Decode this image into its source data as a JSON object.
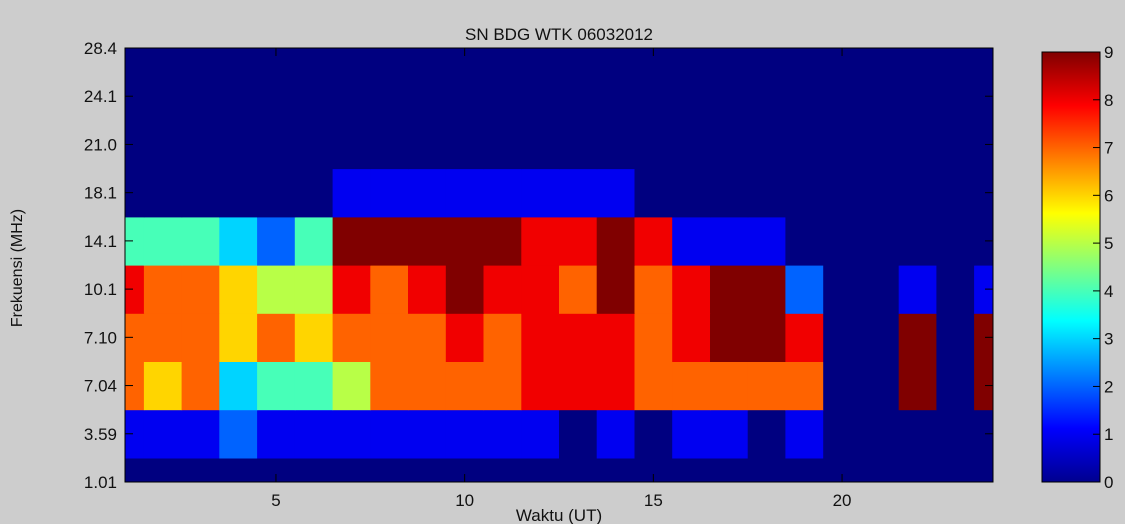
{
  "chart_data": {
    "type": "heatmap",
    "subtype": "filled-contour",
    "title": "SN BDG WTK 06032012",
    "xlabel": "Waktu (UT)",
    "ylabel": "Frekuensi (MHz)",
    "xlim": [
      1,
      24
    ],
    "x_ticks": [
      "5",
      "10",
      "15",
      "20"
    ],
    "y_ticks": [
      "28.4",
      "24.1",
      "21.0",
      "18.1",
      "14.1",
      "10.1",
      "7.10",
      "7.04",
      "3.59",
      "1.01"
    ],
    "colorbar": {
      "range": [
        0,
        9
      ],
      "tick_labels": [
        "9",
        "8",
        "7",
        "6",
        "5",
        "4",
        "3",
        "2",
        "1",
        "0"
      ]
    },
    "x": [
      1,
      2,
      3,
      4,
      5,
      6,
      7,
      8,
      9,
      10,
      11,
      12,
      13,
      14,
      15,
      16,
      17,
      18,
      19,
      20,
      21,
      22,
      23,
      24
    ],
    "y": [
      "1.01",
      "3.59",
      "7.04",
      "7.10",
      "10.1",
      "14.1",
      "18.1",
      "21.0",
      "24.1",
      "28.4"
    ],
    "z": [
      [
        0,
        0,
        0,
        0,
        0,
        0,
        0,
        0,
        0,
        0,
        0,
        0,
        0,
        0,
        0,
        0,
        0,
        0,
        0,
        0,
        0,
        0,
        0,
        0
      ],
      [
        1,
        1,
        1,
        2,
        1,
        1,
        1,
        1,
        1,
        1,
        1,
        1,
        0,
        1,
        0,
        1,
        1,
        0,
        1,
        0,
        0,
        0,
        0,
        0
      ],
      [
        7,
        6,
        7,
        3,
        4,
        4,
        5,
        7,
        7,
        7,
        7,
        8,
        8,
        8,
        7,
        7,
        7,
        7,
        7,
        0,
        0,
        9,
        0,
        9
      ],
      [
        7,
        7,
        7,
        6,
        7,
        6,
        7,
        7,
        7,
        8,
        7,
        8,
        8,
        8,
        7,
        8,
        9,
        9,
        8,
        0,
        0,
        9,
        0,
        9
      ],
      [
        8,
        7,
        7,
        6,
        5,
        5,
        8,
        7,
        8,
        9,
        8,
        8,
        7,
        9,
        7,
        8,
        9,
        9,
        2,
        0,
        0,
        1,
        0,
        1
      ],
      [
        4,
        4,
        4,
        3,
        2,
        4,
        9,
        9,
        9,
        9,
        9,
        8,
        8,
        9,
        8,
        1,
        1,
        1,
        0,
        0,
        0,
        0,
        0,
        0
      ],
      [
        0,
        0,
        0,
        0,
        0,
        0,
        1,
        1,
        1,
        1,
        1,
        1,
        1,
        1,
        0,
        0,
        0,
        0,
        0,
        0,
        0,
        0,
        0,
        0
      ],
      [
        0,
        0,
        0,
        0,
        0,
        0,
        0,
        0,
        0,
        0,
        0,
        0,
        0,
        0,
        0,
        0,
        0,
        0,
        0,
        0,
        0,
        0,
        0,
        0
      ],
      [
        0,
        0,
        0,
        0,
        0,
        0,
        0,
        0,
        0,
        0,
        0,
        0,
        0,
        0,
        0,
        0,
        0,
        0,
        0,
        0,
        0,
        0,
        0,
        0
      ],
      [
        0,
        0,
        0,
        0,
        0,
        0,
        0,
        0,
        0,
        0,
        0,
        0,
        0,
        0,
        0,
        0,
        0,
        0,
        0,
        0,
        0,
        0,
        0,
        0
      ]
    ]
  }
}
